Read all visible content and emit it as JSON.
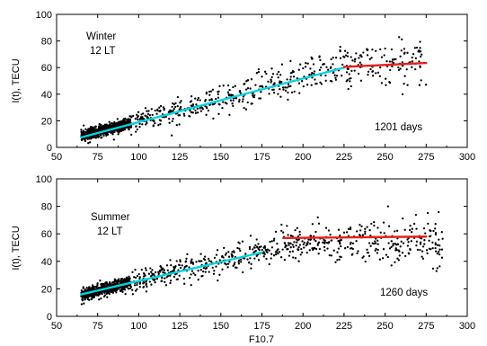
{
  "chart_data": [
    {
      "type": "scatter",
      "panel": "top",
      "season_label": "Winter",
      "time_label": "12 LT",
      "days_label": "1201 days",
      "ylabel": "I(t), TECU",
      "xlabel": "",
      "xlim": [
        50,
        300
      ],
      "ylim": [
        0,
        100
      ],
      "x_ticks": [
        "50",
        "75",
        "100",
        "125",
        "150",
        "175",
        "200",
        "225",
        "250",
        "275",
        "300"
      ],
      "y_ticks": [
        "0",
        "20",
        "40",
        "60",
        "80",
        "100"
      ],
      "grid": false,
      "scatter_model": {
        "x_range": [
          65,
          275
        ],
        "slope": 0.33,
        "intercept": -13,
        "scatter_sd": 6,
        "low_x_fraction": 0.4,
        "low_x_range": [
          65,
          95
        ],
        "n_points": 1201
      },
      "fits": [
        {
          "color": "#00d5e0",
          "x": [
            65,
            225
          ],
          "y": [
            7.5,
            60
          ]
        },
        {
          "color": "#ee1c1c",
          "x": [
            225,
            275
          ],
          "y": [
            60.5,
            63.5
          ]
        }
      ],
      "colors": {
        "points": "#000000",
        "fit_low": "#00d5e0",
        "fit_high": "#ee1c1c"
      }
    },
    {
      "type": "scatter",
      "panel": "bottom",
      "season_label": "Summer",
      "time_label": "12 LT",
      "days_label": "1260 days",
      "ylabel": "I(t), TECU",
      "xlabel": "F10.7",
      "xlim": [
        50,
        300
      ],
      "ylim": [
        0,
        100
      ],
      "x_ticks": [
        "50",
        "75",
        "100",
        "125",
        "150",
        "175",
        "200",
        "225",
        "250",
        "275",
        "300"
      ],
      "y_ticks": [
        "0",
        "20",
        "40",
        "60",
        "80",
        "100"
      ],
      "grid": false,
      "scatter_model": {
        "x_range": [
          65,
          285
        ],
        "slope": 0.29,
        "intercept": -3,
        "scatter_sd": 5.5,
        "low_x_fraction": 0.38,
        "low_x_range": [
          65,
          95
        ],
        "n_points": 1260
      },
      "fits": [
        {
          "color": "#00d5e0",
          "x": [
            65,
            175
          ],
          "y": [
            16,
            46.5
          ]
        },
        {
          "color": "#ee1c1c",
          "x": [
            188,
            275
          ],
          "y": [
            57,
            58
          ]
        }
      ],
      "colors": {
        "points": "#000000",
        "fit_low": "#00d5e0",
        "fit_high": "#ee1c1c"
      }
    }
  ]
}
